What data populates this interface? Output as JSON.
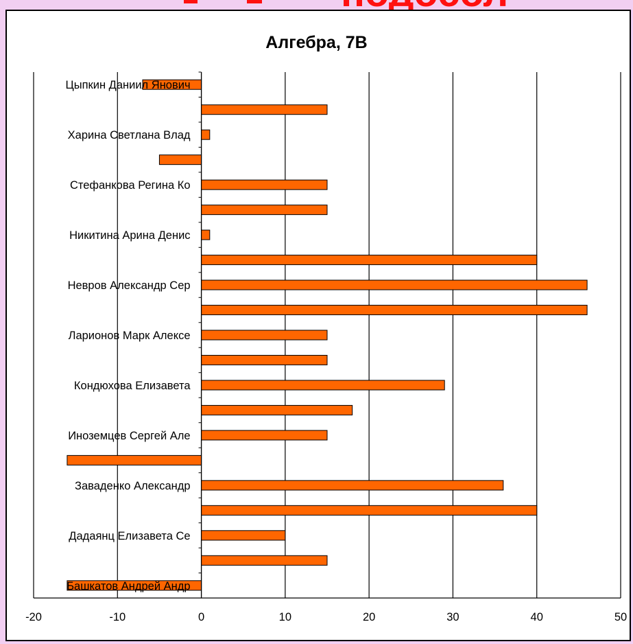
{
  "banner": {
    "text": "подосол",
    "color": "#ff1010"
  },
  "colors": {
    "bar": "#ff6600",
    "bar_stroke": "#000000",
    "grid": "#000000",
    "background": "#f2cff2"
  },
  "chart_data": {
    "type": "bar",
    "orientation": "horizontal",
    "title": "Алгебра, 7В",
    "xlabel": "",
    "ylabel": "",
    "xlim": [
      -20,
      50
    ],
    "x_ticks": [
      "-20",
      "-10",
      "0",
      "10",
      "20",
      "30",
      "40",
      "50"
    ],
    "grid": true,
    "legend": "none",
    "categories": [
      "Цыпкин Даниил Янович",
      "",
      "Харина Светлана Влад",
      "",
      "Стефанкова Регина Ко",
      "",
      "Никитина Арина Денис",
      "",
      "Невров Александр Сер",
      "",
      "Ларионов Марк Алексе",
      "",
      "Кондюхова Елизавета",
      "",
      "Иноземцев Сергей Але",
      "",
      "Заваденко Александр",
      "",
      "Дадаянц Елизавета Се",
      "",
      "Башкатов Андрей Андр"
    ],
    "values": [
      -7,
      15,
      1,
      -5,
      15,
      15,
      1,
      40,
      46,
      46,
      15,
      15,
      29,
      18,
      15,
      -16,
      36,
      40,
      10,
      15,
      -16
    ]
  }
}
